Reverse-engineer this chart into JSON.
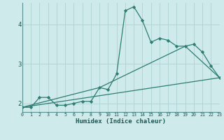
{
  "xlabel": "Humidex (Indice chaleur)",
  "x_ticks": [
    0,
    1,
    2,
    3,
    4,
    5,
    6,
    7,
    8,
    9,
    10,
    11,
    12,
    13,
    14,
    15,
    16,
    17,
    18,
    19,
    20,
    21,
    22,
    23
  ],
  "y_ticks": [
    2,
    3,
    4
  ],
  "xlim": [
    0,
    23
  ],
  "ylim": [
    1.78,
    4.55
  ],
  "bg_color": "#ceeaea",
  "grid_color": "#b2d5d5",
  "line_color": "#2e7d72",
  "line1_x": [
    0,
    1,
    2,
    3,
    4,
    5,
    6,
    7,
    8,
    9,
    10,
    11,
    12,
    13,
    14,
    15,
    16,
    17,
    18,
    19,
    20,
    21,
    22,
    23
  ],
  "line1_y": [
    1.9,
    1.9,
    2.15,
    2.15,
    1.95,
    1.95,
    2.0,
    2.05,
    2.05,
    2.4,
    2.35,
    2.75,
    4.35,
    4.45,
    4.1,
    3.55,
    3.65,
    3.6,
    3.45,
    3.45,
    3.5,
    3.3,
    2.95,
    2.65
  ],
  "line2_x": [
    0,
    23
  ],
  "line2_y": [
    1.9,
    2.65
  ],
  "line3_x": [
    0,
    9,
    19,
    23
  ],
  "line3_y": [
    1.9,
    2.4,
    3.45,
    2.65
  ]
}
